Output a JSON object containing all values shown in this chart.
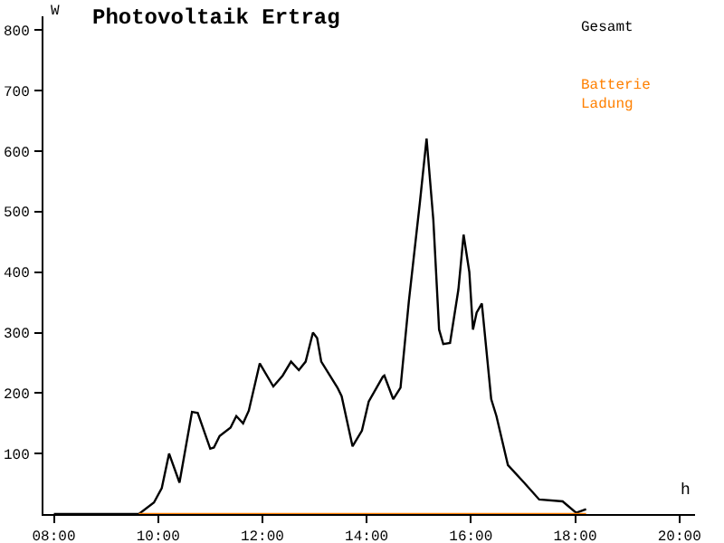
{
  "chart_data": {
    "type": "line",
    "title": "Photovoltaik Ertrag",
    "xlabel": "h",
    "ylabel": "W",
    "xlim": [
      7.8,
      20.3
    ],
    "xticks": [
      {
        "value": 8,
        "label": "08:00"
      },
      {
        "value": 10,
        "label": "10:00"
      },
      {
        "value": 12,
        "label": "12:00"
      },
      {
        "value": 14,
        "label": "14:00"
      },
      {
        "value": 16,
        "label": "16:00"
      },
      {
        "value": 18,
        "label": "18:00"
      },
      {
        "value": 20,
        "label": "20:00"
      }
    ],
    "ylim": [
      0,
      823
    ],
    "yticks": [
      100,
      200,
      300,
      400,
      500,
      600,
      700,
      800
    ],
    "grid": false,
    "legend": "top right",
    "marker": "none",
    "line_style": "solid",
    "series": [
      {
        "name": "Gesamt",
        "color": "#000000",
        "x": [
          8.0,
          9.63,
          9.92,
          10.07,
          10.21,
          10.41,
          10.65,
          10.76,
          11.0,
          11.07,
          11.18,
          11.39,
          11.5,
          11.63,
          11.74,
          11.95,
          12.21,
          12.39,
          12.55,
          12.7,
          12.83,
          12.97,
          13.05,
          13.13,
          13.44,
          13.52,
          13.73,
          13.91,
          14.04,
          14.31,
          14.34,
          14.51,
          14.65,
          14.81,
          15.02,
          15.15,
          15.28,
          15.39,
          15.47,
          15.6,
          15.76,
          15.86,
          15.97,
          16.04,
          16.11,
          16.21,
          16.39,
          16.49,
          16.71,
          17.02,
          17.31,
          17.76,
          18.02,
          18.21
        ],
        "values": [
          0,
          0,
          19,
          43,
          100,
          52,
          169,
          167,
          108,
          110,
          129,
          143,
          162,
          150,
          171,
          249,
          211,
          229,
          252,
          238,
          252,
          300,
          291,
          252,
          209,
          195,
          112,
          138,
          186,
          227,
          229,
          190,
          209,
          352,
          514,
          621,
          486,
          305,
          281,
          283,
          371,
          462,
          400,
          305,
          333,
          348,
          190,
          162,
          81,
          52,
          24,
          21,
          2,
          8
        ]
      },
      {
        "name": "Batterie Ladung",
        "color": "#ff8000",
        "x": [
          9.63,
          18.21
        ],
        "values": [
          0,
          0
        ]
      }
    ]
  }
}
